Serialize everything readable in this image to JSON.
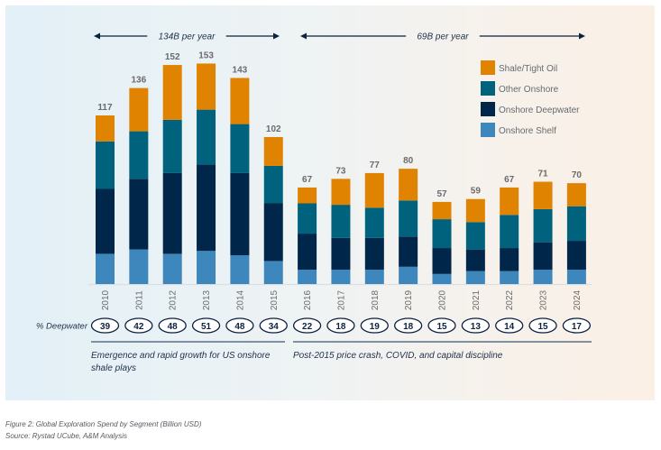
{
  "chart_data": {
    "type": "bar",
    "stacked": true,
    "title": "Figure 2: Global Exploration Spend by Segment (Billion USD)",
    "source": "Source: Rystad UCube, A&M Analysis",
    "xlabel": "",
    "ylabel": "",
    "ylim": [
      0,
      160
    ],
    "grid": false,
    "legend_position": "top-right",
    "categories": [
      "2010",
      "2011",
      "2012",
      "2013",
      "2014",
      "2015",
      "2016",
      "2017",
      "2018",
      "2019",
      "2020",
      "2021",
      "2022",
      "2023",
      "2024"
    ],
    "totals": [
      117,
      136,
      152,
      153,
      143,
      102,
      67,
      73,
      77,
      80,
      57,
      59,
      67,
      71,
      70
    ],
    "series": [
      {
        "name": "Onshore Shelf",
        "color": "#3e87bd",
        "values": [
          21,
          24,
          21,
          23,
          20,
          16,
          10,
          10,
          10,
          12,
          7,
          9,
          9,
          10,
          10
        ]
      },
      {
        "name": "Onshore Deepwater",
        "color": "#00264a",
        "values": [
          45,
          49,
          56,
          60,
          57,
          40,
          25,
          22,
          22,
          21,
          18,
          15,
          16,
          19,
          20
        ]
      },
      {
        "name": "Other Onshore",
        "color": "#00627d",
        "values": [
          33,
          33,
          37,
          38,
          34,
          26,
          21,
          23,
          21,
          25,
          20,
          19,
          23,
          23,
          24
        ]
      },
      {
        "name": "Shale/Tight Oil",
        "color": "#e08300",
        "values": [
          18,
          30,
          38,
          32,
          32,
          20,
          11,
          18,
          24,
          22,
          12,
          16,
          19,
          19,
          16
        ]
      }
    ],
    "legend_order": [
      "Shale/Tight Oil",
      "Other Onshore",
      "Onshore Deepwater",
      "Onshore Shelf"
    ],
    "deepwater_row": {
      "label": "% Deepwater",
      "values": [
        39,
        42,
        48,
        51,
        48,
        34,
        22,
        18,
        19,
        18,
        15,
        13,
        14,
        15,
        17
      ]
    },
    "period_annotations": [
      {
        "label": "134B per year",
        "from": "2010",
        "to": "2015"
      },
      {
        "label": "69B per year",
        "from": "2016",
        "to": "2024"
      }
    ],
    "period_notes": [
      {
        "text_lines": [
          "Emergence and rapid growth for US onshore",
          "shale plays"
        ],
        "from": "2010",
        "to": "2015"
      },
      {
        "text_lines": [
          "Post-2015 price crash, COVID, and capital discipline"
        ],
        "from": "2016",
        "to": "2024"
      }
    ]
  },
  "caption": {
    "figure": "Figure 2: Global Exploration Spend by Segment (Billion USD)",
    "source": "Source: Rystad UCube, A&M Analysis"
  }
}
